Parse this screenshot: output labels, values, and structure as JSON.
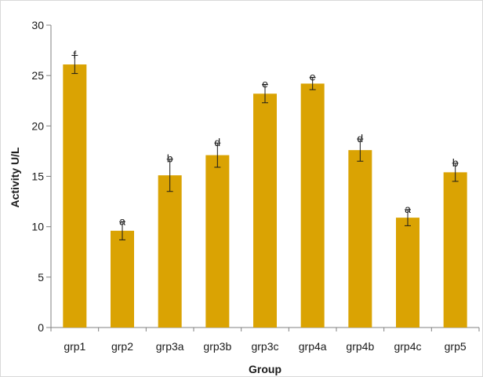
{
  "chart_data": {
    "type": "bar",
    "title": "",
    "xlabel": "Group",
    "ylabel": "Activity U/L",
    "categories": [
      "grp1",
      "grp2",
      "grp3a",
      "grp3b",
      "grp3c",
      "grp4a",
      "grp4b",
      "grp4c",
      "grp5"
    ],
    "values": [
      26.1,
      9.6,
      15.1,
      17.1,
      23.2,
      24.2,
      17.6,
      10.9,
      15.4
    ],
    "errors": [
      0.9,
      0.9,
      1.6,
      1.2,
      0.9,
      0.6,
      1.1,
      0.8,
      0.9
    ],
    "significance_labels": [
      "f",
      "a",
      "b",
      "d",
      "e",
      "e",
      "d",
      "a",
      "b"
    ],
    "ylim": [
      0,
      30
    ],
    "yticks": [
      0,
      5,
      10,
      15,
      20,
      25,
      30
    ],
    "grid": false,
    "legend": "none",
    "bar_color": "#DAA303",
    "error_bar_color": "#1a1a1a",
    "axis_color": "#808080"
  }
}
